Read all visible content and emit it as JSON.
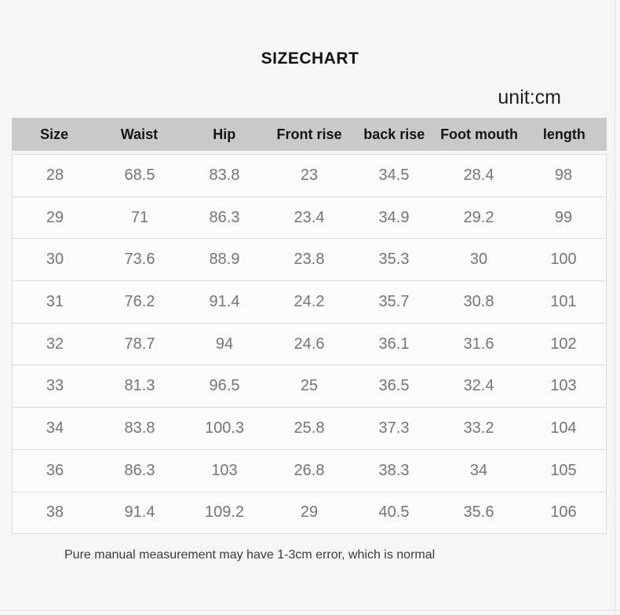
{
  "page": {
    "title": "SIZECHART",
    "unit_label": "unit:cm",
    "footer_note": "Pure manual measurement may have 1-3cm error, which is normal"
  },
  "colors": {
    "page_background": "#f6f6f6",
    "header_row_background": "#c9c9c9",
    "header_text": "#151515",
    "row_background": "#fbfbfb",
    "row_border": "#dcdcdc",
    "data_text": "#757575",
    "title_text": "#111111",
    "footer_text": "#3b3b3b"
  },
  "chart_data": {
    "type": "table",
    "title": "SIZECHART",
    "unit": "cm",
    "columns": [
      "Size",
      "Waist",
      "Hip",
      "Front rise",
      "back rise",
      "Foot mouth",
      "length"
    ],
    "rows": [
      [
        28,
        68.5,
        83.8,
        23,
        34.5,
        28.4,
        98
      ],
      [
        29,
        71,
        86.3,
        23.4,
        34.9,
        29.2,
        99
      ],
      [
        30,
        73.6,
        88.9,
        23.8,
        35.3,
        30,
        100
      ],
      [
        31,
        76.2,
        91.4,
        24.2,
        35.7,
        30.8,
        101
      ],
      [
        32,
        78.7,
        94,
        24.6,
        36.1,
        31.6,
        102
      ],
      [
        33,
        81.3,
        96.5,
        25,
        36.5,
        32.4,
        103
      ],
      [
        34,
        83.8,
        100.3,
        25.8,
        37.3,
        33.2,
        104
      ],
      [
        36,
        86.3,
        103,
        26.8,
        38.3,
        34,
        105
      ],
      [
        38,
        91.4,
        109.2,
        29,
        40.5,
        35.6,
        106
      ]
    ],
    "note": "Pure manual measurement may have 1-3cm error, which is normal",
    "layout": {
      "title_align": "center",
      "unit_align": "right",
      "grid": "horizontal-only",
      "header_style": "gray-band-bold"
    }
  }
}
